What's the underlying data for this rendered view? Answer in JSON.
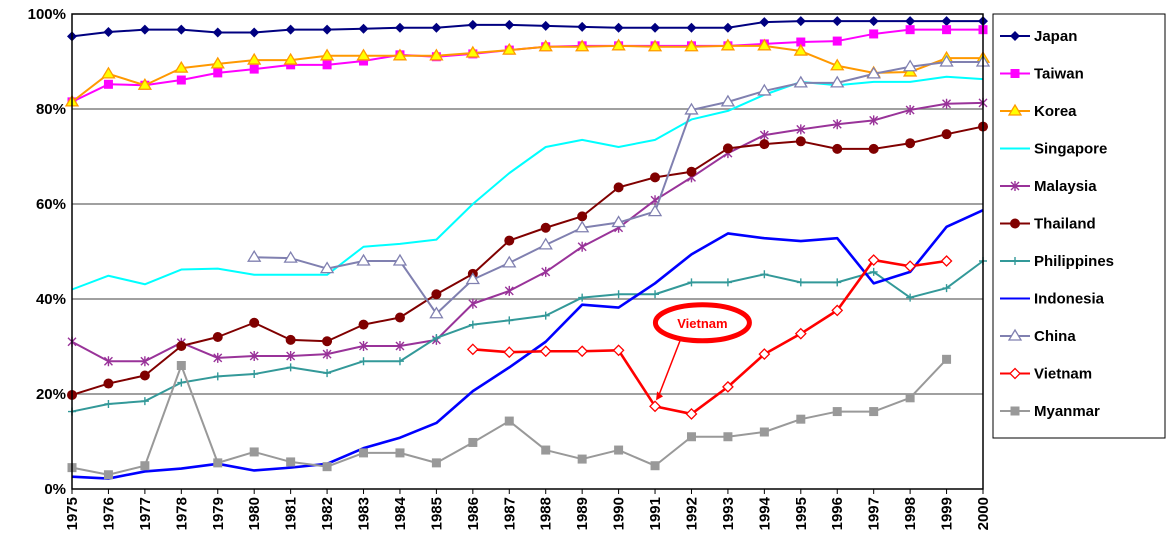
{
  "chart_data": {
    "type": "line",
    "title": "",
    "xlabel": "",
    "ylabel": "",
    "x": [
      1975,
      1976,
      1977,
      1978,
      1979,
      1980,
      1981,
      1982,
      1983,
      1984,
      1985,
      1986,
      1987,
      1988,
      1989,
      1990,
      1991,
      1992,
      1993,
      1994,
      1995,
      1996,
      1997,
      1998,
      1999,
      2000
    ],
    "ylim": [
      0,
      100
    ],
    "yticks": [
      "0%",
      "20%",
      "40%",
      "60%",
      "80%",
      "100%"
    ],
    "grid": true,
    "legend": "right",
    "annotation": "Vietnam",
    "series": [
      {
        "name": "Japan",
        "color": "#000080",
        "marker": "diamond",
        "values": [
          95.3,
          96.2,
          96.7,
          96.7,
          96.1,
          96.1,
          96.7,
          96.7,
          96.9,
          97.1,
          97.1,
          97.7,
          97.7,
          97.5,
          97.3,
          97.1,
          97.1,
          97.1,
          97.1,
          98.3,
          98.5,
          98.5,
          98.5,
          98.5,
          98.5,
          98.5
        ]
      },
      {
        "name": "Taiwan",
        "color": "#ff00ff",
        "marker": "square",
        "values": [
          81.5,
          85.2,
          85.0,
          86.1,
          87.6,
          88.4,
          89.3,
          89.3,
          90.1,
          91.4,
          91.0,
          91.6,
          92.4,
          93.1,
          93.3,
          93.3,
          93.3,
          93.3,
          93.3,
          93.7,
          94.1,
          94.3,
          95.8,
          96.7,
          96.7,
          96.7
        ]
      },
      {
        "name": "Korea",
        "color": "#ff9900",
        "marker": "triangle",
        "values": [
          81.5,
          87.4,
          85.0,
          88.6,
          89.5,
          90.3,
          90.3,
          91.2,
          91.2,
          91.2,
          91.2,
          91.8,
          92.4,
          93.1,
          93.1,
          93.3,
          93.1,
          93.1,
          93.3,
          93.3,
          92.2,
          89.1,
          87.6,
          87.8,
          90.7,
          90.7
        ]
      },
      {
        "name": "Singapore",
        "color": "#00ffff",
        "marker": "line",
        "values": [
          42.0,
          44.9,
          43.1,
          46.2,
          46.4,
          45.1,
          45.1,
          45.1,
          51.0,
          51.6,
          52.5,
          60.0,
          66.5,
          72.0,
          73.5,
          72.0,
          73.5,
          77.8,
          79.6,
          83.0,
          85.7,
          85.0,
          85.7,
          85.7,
          86.8,
          86.3
        ]
      },
      {
        "name": "Malaysia",
        "color": "#993399",
        "marker": "asterisk",
        "values": [
          31.0,
          26.9,
          26.9,
          30.8,
          27.6,
          28.0,
          28.0,
          28.4,
          30.1,
          30.1,
          31.4,
          39.0,
          41.7,
          45.7,
          51.0,
          55.0,
          60.8,
          65.6,
          70.7,
          74.5,
          75.7,
          76.8,
          77.6,
          79.8,
          81.1,
          81.3
        ]
      },
      {
        "name": "Thailand",
        "color": "#800000",
        "marker": "circle",
        "values": [
          19.8,
          22.2,
          23.9,
          30.1,
          32.0,
          35.0,
          31.4,
          31.1,
          34.6,
          36.1,
          41.0,
          45.3,
          52.3,
          55.0,
          57.4,
          63.5,
          65.6,
          66.8,
          71.7,
          72.6,
          73.2,
          71.6,
          71.6,
          72.8,
          74.7,
          76.3
        ]
      },
      {
        "name": "Philippines",
        "color": "#339999",
        "marker": "plus",
        "values": [
          16.3,
          17.9,
          18.5,
          22.4,
          23.7,
          24.2,
          25.6,
          24.4,
          26.9,
          26.9,
          31.8,
          34.6,
          35.5,
          36.5,
          40.3,
          41.0,
          41.0,
          43.5,
          43.5,
          45.2,
          43.5,
          43.5,
          45.7,
          40.3,
          42.3,
          48.0
        ]
      },
      {
        "name": "Indonesia",
        "color": "#0000ff",
        "marker": "line",
        "values": [
          2.6,
          2.2,
          3.7,
          4.3,
          5.3,
          3.9,
          4.5,
          5.3,
          8.6,
          10.8,
          13.9,
          20.6,
          25.6,
          31.0,
          38.8,
          38.2,
          43.3,
          49.4,
          53.8,
          52.8,
          52.2,
          52.8,
          43.3,
          45.7,
          55.2,
          58.7
        ]
      },
      {
        "name": "China",
        "color": "#8080b0",
        "marker": "triangle-open",
        "values": [
          null,
          null,
          null,
          null,
          null,
          48.8,
          48.6,
          46.4,
          48.0,
          48.0,
          36.9,
          44.1,
          47.6,
          51.4,
          55.0,
          56.1,
          58.4,
          79.8,
          81.5,
          83.8,
          85.5,
          85.5,
          87.4,
          88.9,
          89.9,
          89.9
        ]
      },
      {
        "name": "Vietnam",
        "color": "#ff0000",
        "marker": "diamond-open",
        "values": [
          null,
          null,
          null,
          null,
          null,
          null,
          null,
          null,
          null,
          null,
          null,
          29.4,
          28.8,
          29.0,
          29.0,
          29.2,
          17.4,
          15.8,
          21.5,
          28.4,
          32.7,
          37.6,
          48.2,
          46.9,
          48.0,
          null
        ]
      },
      {
        "name": "Myanmar",
        "color": "#999999",
        "marker": "square",
        "values": [
          4.5,
          3.0,
          4.9,
          26.0,
          5.5,
          7.8,
          5.7,
          4.7,
          7.6,
          7.6,
          5.5,
          9.8,
          14.3,
          8.2,
          6.3,
          8.2,
          4.9,
          11.0,
          11.0,
          12.0,
          14.7,
          16.3,
          16.3,
          19.2,
          27.3,
          null
        ]
      }
    ]
  }
}
